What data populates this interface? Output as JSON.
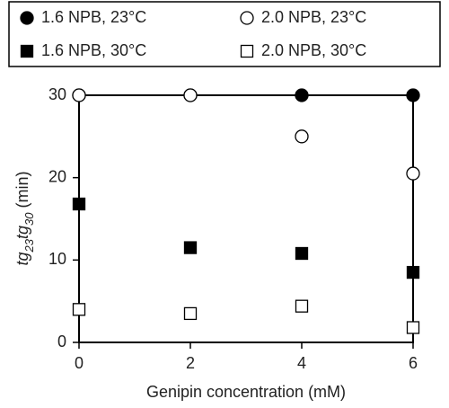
{
  "chart_data": {
    "type": "scatter",
    "x_label": "Genipin concentration (mM)",
    "y_label": [
      "tg",
      "23",
      "tg",
      "30",
      " (min)"
    ],
    "x": [
      0,
      2,
      4,
      6
    ],
    "series": [
      {
        "name": "1.6 NPB, 23°C",
        "color": "#000000",
        "marker": "circle",
        "filled": true,
        "values": [
          30,
          30,
          30,
          30
        ]
      },
      {
        "name": "2.0 NPB, 23°C",
        "color": "#000000",
        "marker": "circle",
        "filled": false,
        "values": [
          30,
          30,
          25,
          20.5
        ]
      },
      {
        "name": "1.6 NPB, 30°C",
        "color": "#000000",
        "marker": "square",
        "filled": true,
        "values": [
          16.8,
          11.5,
          10.8,
          8.5
        ]
      },
      {
        "name": "2.0 NPB, 30°C",
        "color": "#000000",
        "marker": "square",
        "filled": false,
        "values": [
          4,
          3.5,
          4.4,
          1.8
        ]
      }
    ],
    "xlim": [
      0,
      6
    ],
    "xticks": [
      0,
      2,
      4,
      6
    ],
    "ylim": [
      0,
      30
    ],
    "yticks": [
      0,
      10,
      20,
      30
    ],
    "grid": false,
    "legend": "top"
  }
}
